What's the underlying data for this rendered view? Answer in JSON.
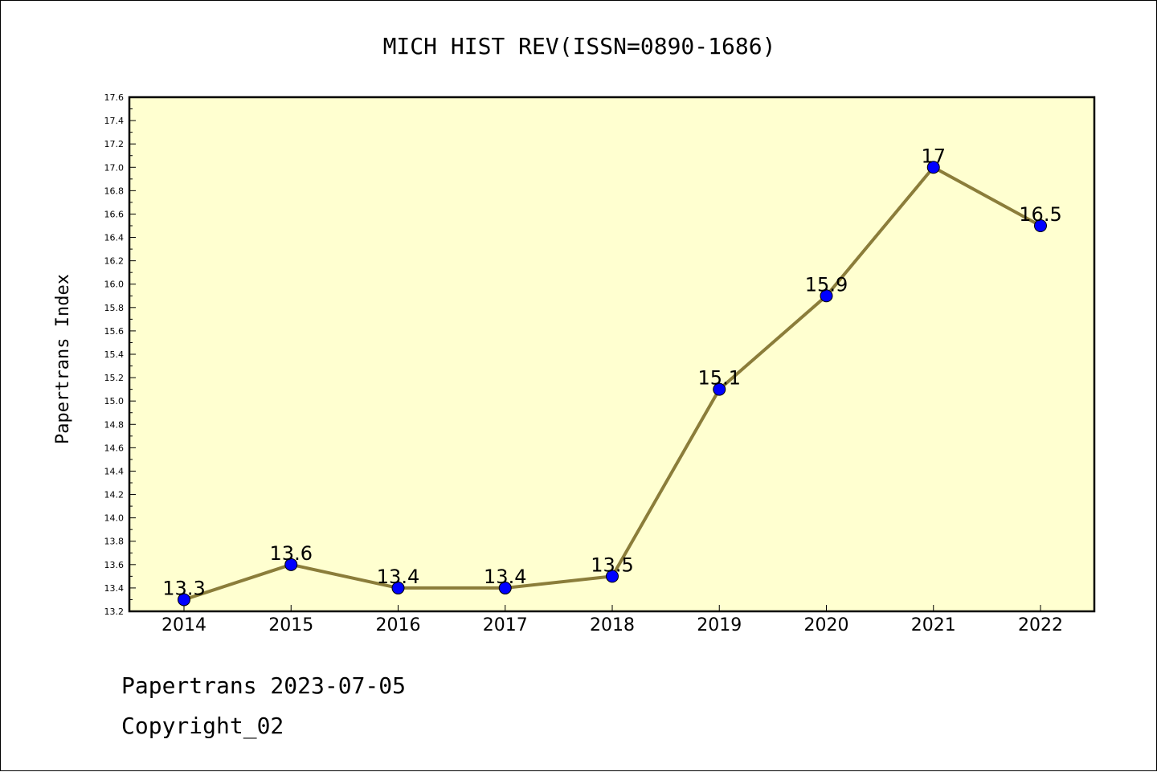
{
  "chart_data": {
    "type": "line",
    "title": "MICH HIST REV(ISSN=0890-1686)",
    "ylabel": "Papertrans Index",
    "xlabel": "",
    "categories": [
      "2014",
      "2015",
      "2016",
      "2017",
      "2018",
      "2019",
      "2020",
      "2021",
      "2022"
    ],
    "values": [
      13.3,
      13.6,
      13.4,
      13.4,
      13.5,
      15.1,
      15.9,
      17.0,
      16.5
    ],
    "data_labels": [
      "13.3",
      "13.6",
      "13.4",
      "13.4",
      "13.5",
      "15.1",
      "15.9",
      "17",
      "16.5"
    ],
    "ylim": [
      13.2,
      17.6
    ],
    "yticks": [
      "13.2",
      "13.4",
      "13.6",
      "13.8",
      "14.0",
      "14.2",
      "14.4",
      "14.6",
      "14.8",
      "15.0",
      "15.2",
      "15.4",
      "15.6",
      "15.8",
      "16.0",
      "16.2",
      "16.4",
      "16.6",
      "16.8",
      "17.0",
      "17.2",
      "17.4",
      "17.6"
    ],
    "grid": false,
    "colors": {
      "plot_background": "#ffffd0",
      "line": "#8b7d3a",
      "marker": "#0000ff",
      "marker_edge": "#000000"
    }
  },
  "footer": {
    "date_line": "Papertrans 2023-07-05",
    "copyright": "Copyright_02"
  }
}
